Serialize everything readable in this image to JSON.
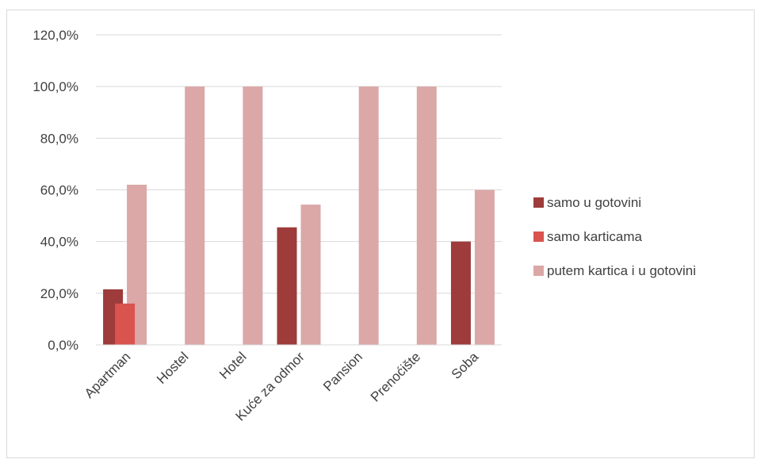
{
  "chart_data": {
    "type": "bar",
    "categories": [
      "Apartman",
      "Hostel",
      "Hotel",
      "Kuće za odmor",
      "Pansion",
      "Prenoćište",
      "Soba"
    ],
    "series": [
      {
        "name": "samo u gotovini",
        "values": [
          21.5,
          0,
          0,
          45.5,
          0,
          0,
          40.0
        ],
        "color": "#9e3b3b"
      },
      {
        "name": "samo karticama",
        "values": [
          16.0,
          0,
          0,
          0,
          0,
          0,
          0
        ],
        "color": "#d9534f"
      },
      {
        "name": "putem kartica i u gotovini",
        "values": [
          62.0,
          100.0,
          100.0,
          54.3,
          100.0,
          100.0,
          60.0
        ],
        "color": "#dba7a7"
      }
    ],
    "y_ticks": [
      "0,0%",
      "20,0%",
      "40,0%",
      "60,0%",
      "80,0%",
      "100,0%",
      "120,0%"
    ],
    "ylim": [
      0,
      120
    ],
    "grid": true,
    "legend_position": "right",
    "title": "",
    "xlabel": "",
    "ylabel": ""
  }
}
